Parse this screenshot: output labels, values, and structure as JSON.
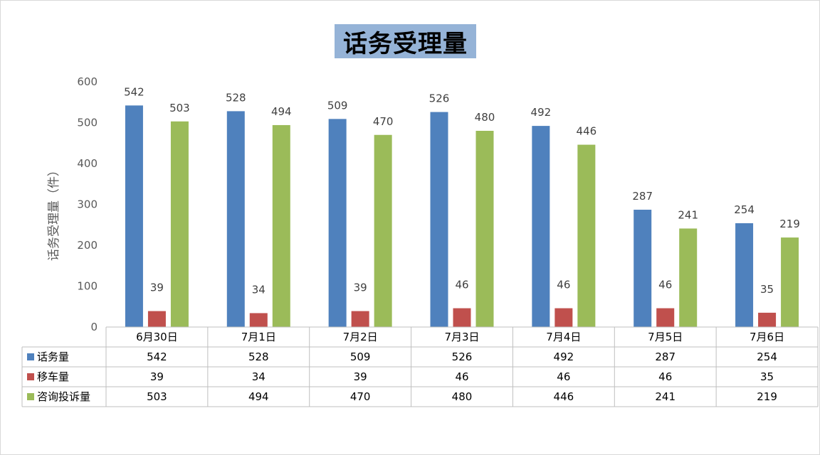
{
  "chart_data": {
    "type": "bar",
    "title": "话务受理量",
    "ylabel": "话务受理量（件）",
    "xlabel": "",
    "ylim": [
      0,
      600
    ],
    "yticks": [
      0,
      100,
      200,
      300,
      400,
      500,
      600
    ],
    "grid": false,
    "legend": "data-table",
    "categories": [
      "6月30日",
      "7月1日",
      "7月2日",
      "7月3日",
      "7月4日",
      "7月5日",
      "7月6日"
    ],
    "series": [
      {
        "name": "话务量",
        "color": "#4f81bd",
        "values": [
          542,
          528,
          509,
          526,
          492,
          287,
          254
        ]
      },
      {
        "name": "移车量",
        "color": "#c0504d",
        "values": [
          39,
          34,
          39,
          46,
          46,
          46,
          35
        ]
      },
      {
        "name": "咨询投诉量",
        "color": "#9bbb59",
        "values": [
          503,
          494,
          470,
          480,
          446,
          241,
          219
        ]
      }
    ]
  }
}
